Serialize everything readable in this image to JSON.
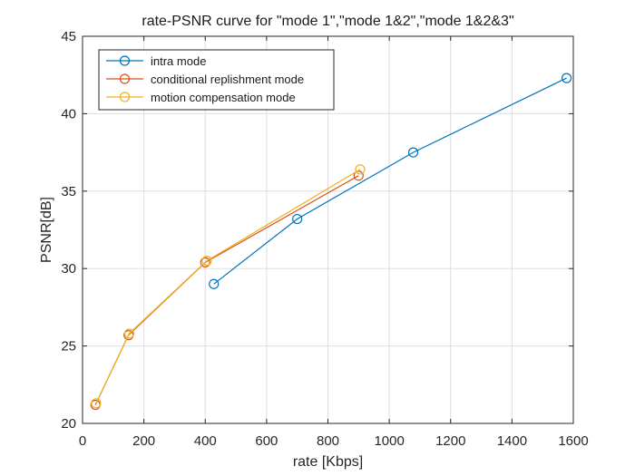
{
  "chart_data": {
    "type": "line",
    "title": "rate-PSNR curve for \"mode 1\",\"mode 1&2\",\"mode 1&2&3\"",
    "xlabel": "rate [Kbps]",
    "ylabel": "PSNR[dB]",
    "xlim": [
      0,
      1600
    ],
    "ylim": [
      20,
      45
    ],
    "xticks": [
      0,
      200,
      400,
      600,
      800,
      1000,
      1200,
      1400,
      1600
    ],
    "yticks": [
      20,
      25,
      30,
      35,
      40,
      45
    ],
    "xtick_labels": [
      "0",
      "200",
      "400",
      "600",
      "800",
      "1000",
      "1200",
      "1400",
      "1600"
    ],
    "ytick_labels": [
      "20",
      "25",
      "30",
      "35",
      "40",
      "45"
    ],
    "grid": true,
    "legend_position": "top-left",
    "marker": "circle",
    "series": [
      {
        "name": "intra mode",
        "color": "#0072BD",
        "x": [
          428,
          700,
          1078,
          1578
        ],
        "y": [
          29.0,
          33.2,
          37.5,
          42.3
        ]
      },
      {
        "name": "conditional replishment mode",
        "color": "#D95319",
        "x": [
          42,
          150,
          400,
          900
        ],
        "y": [
          21.2,
          25.7,
          30.4,
          36.0
        ]
      },
      {
        "name": "motion compensation mode",
        "color": "#EDB120",
        "x": [
          44,
          152,
          405,
          905
        ],
        "y": [
          21.3,
          25.8,
          30.5,
          36.4
        ]
      }
    ]
  }
}
